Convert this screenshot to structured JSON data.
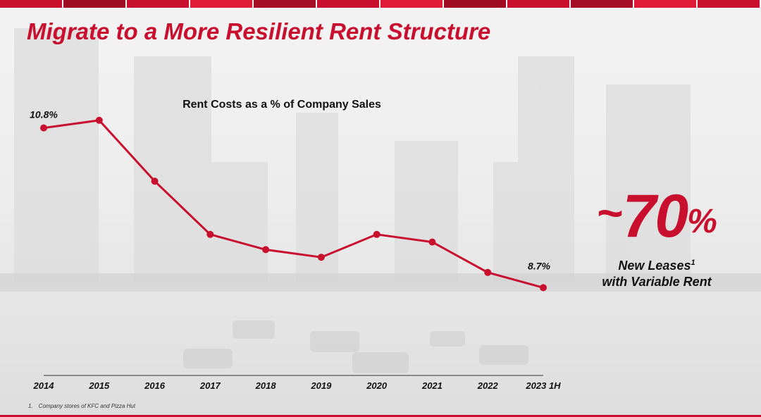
{
  "slide": {
    "title": "Migrate to a More Resilient Rent Structure",
    "stat": {
      "tilde": "~",
      "value": "70",
      "unit": "%",
      "label": "New Leases",
      "label_sup": "1",
      "label_line2": "with Variable Rent"
    },
    "footnote": "1. Company stores of KFC and Pizza Hut"
  },
  "colors": {
    "accent": "#c8102e",
    "text": "#111111"
  },
  "chart_data": {
    "type": "line",
    "title": "Rent Costs as a % of Company Sales",
    "categories": [
      "2014",
      "2015",
      "2016",
      "2017",
      "2018",
      "2019",
      "2020",
      "2021",
      "2022",
      "2023 1H"
    ],
    "values": [
      10.8,
      10.9,
      10.1,
      9.4,
      9.2,
      9.1,
      9.4,
      9.3,
      8.9,
      8.7
    ],
    "labels": {
      "0": "10.8%",
      "9": "8.7%"
    },
    "ylim": [
      8.5,
      11.0
    ],
    "grid": false,
    "color": "#c8102e"
  }
}
